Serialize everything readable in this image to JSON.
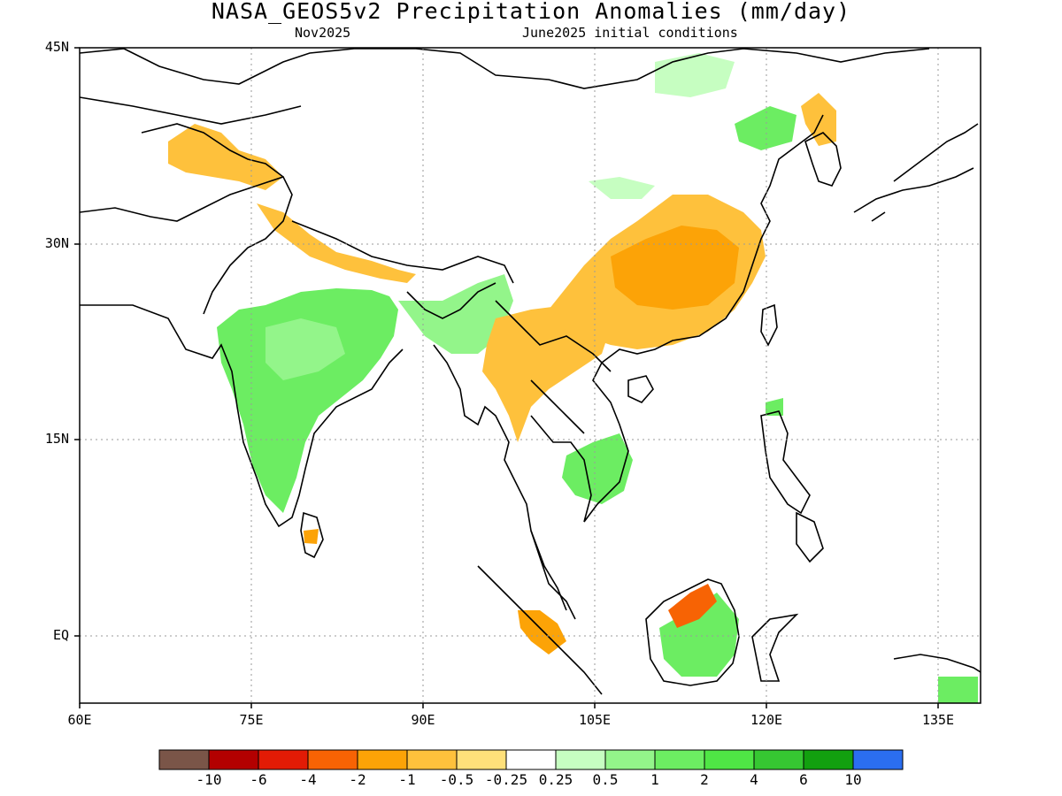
{
  "title": "NASA_GEOS5v2 Precipitation Anomalies (mm/day)",
  "subtitle_left": "Nov2025",
  "subtitle_right": "June2025 initial conditions",
  "map": {
    "lon_range": [
      60,
      140
    ],
    "lat_range": [
      -6,
      45
    ],
    "lat_ticks": [
      "45N",
      "30N",
      "15N",
      "EQ"
    ],
    "lon_ticks": [
      "60E",
      "75E",
      "90E",
      "105E",
      "120E",
      "135E"
    ],
    "grid": "dotted"
  },
  "colorbar": {
    "colors": [
      "#7a5548",
      "#b30000",
      "#e21b05",
      "#f76304",
      "#fca307",
      "#fec13c",
      "#ffe07a",
      "#ffffff",
      "#c6fec1",
      "#93f58a",
      "#6ced62",
      "#4fe645",
      "#36c732",
      "#12a00f",
      "#2b6ef0"
    ],
    "labels": [
      "-10",
      "-6",
      "-4",
      "-2",
      "-1",
      "-0.5",
      "-0.25",
      "0.25",
      "0.5",
      "1",
      "2",
      "4",
      "6",
      "10"
    ]
  },
  "anomaly_regions": [
    {
      "name": "central-india-wet",
      "color": "#6ced62"
    },
    {
      "name": "india-inner-wet",
      "color": "#93f58a"
    },
    {
      "name": "south-china-dry",
      "color": "#fec13c"
    },
    {
      "name": "yangtze-dry-core",
      "color": "#fca307"
    },
    {
      "name": "himalaya-dry",
      "color": "#fec13c"
    },
    {
      "name": "northwest-dry",
      "color": "#fec13c"
    },
    {
      "name": "cambodia-wet",
      "color": "#6ced62"
    },
    {
      "name": "borneo-wet",
      "color": "#6ced62"
    },
    {
      "name": "borneo-dry",
      "color": "#f76304"
    },
    {
      "name": "sumatra-dry",
      "color": "#fca307"
    }
  ]
}
